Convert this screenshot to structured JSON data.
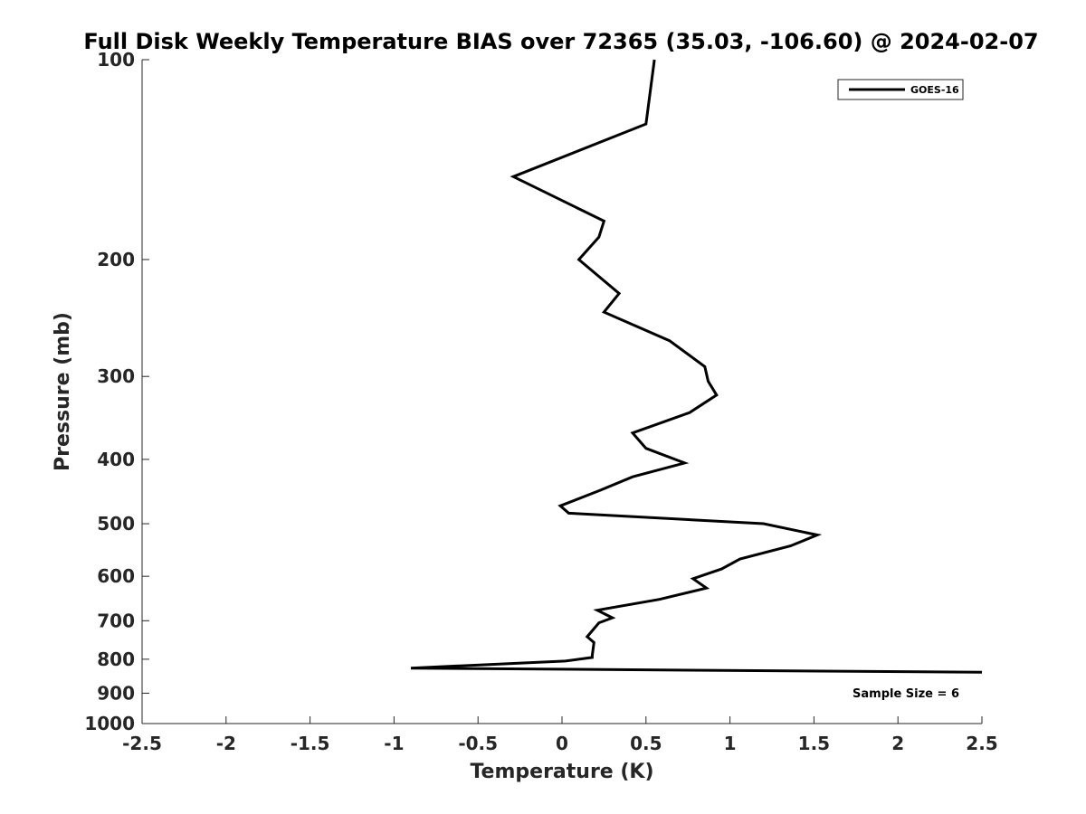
{
  "chart_data": {
    "type": "line",
    "title": "Full Disk Weekly Temperature BIAS over 72365 (35.03, -106.60) @ 2024-02-07",
    "xlabel": "Temperature (K)",
    "ylabel": "Pressure (mb)",
    "xlim": [
      -2.5,
      2.5
    ],
    "ylim": [
      100,
      1000
    ],
    "y_scale": "log",
    "y_reversed": true,
    "xticks": [
      "-2.5",
      "-2",
      "-1.5",
      "-1",
      "-0.5",
      "0",
      "0.5",
      "1",
      "1.5",
      "2",
      "2.5"
    ],
    "yticks": [
      "100",
      "200",
      "300",
      "400",
      "500",
      "600",
      "700",
      "800",
      "900",
      "1000"
    ],
    "grid": false,
    "legend_position": "top-right",
    "series": [
      {
        "name": "GOES-16",
        "color": "#000000",
        "points": [
          {
            "t": 0.55,
            "p": 100
          },
          {
            "t": 0.5,
            "p": 125
          },
          {
            "t": -0.29,
            "p": 150
          },
          {
            "t": 0.25,
            "p": 175
          },
          {
            "t": 0.22,
            "p": 185
          },
          {
            "t": 0.1,
            "p": 200
          },
          {
            "t": 0.34,
            "p": 225
          },
          {
            "t": 0.25,
            "p": 240
          },
          {
            "t": 0.64,
            "p": 265
          },
          {
            "t": 0.85,
            "p": 290
          },
          {
            "t": 0.87,
            "p": 305
          },
          {
            "t": 0.92,
            "p": 320
          },
          {
            "t": 0.76,
            "p": 340
          },
          {
            "t": 0.42,
            "p": 365
          },
          {
            "t": 0.5,
            "p": 385
          },
          {
            "t": 0.73,
            "p": 405
          },
          {
            "t": 0.42,
            "p": 425
          },
          {
            "t": 0.23,
            "p": 445
          },
          {
            "t": -0.01,
            "p": 470
          },
          {
            "t": 0.04,
            "p": 482
          },
          {
            "t": 1.2,
            "p": 500
          },
          {
            "t": 1.52,
            "p": 520
          },
          {
            "t": 1.36,
            "p": 540
          },
          {
            "t": 1.06,
            "p": 565
          },
          {
            "t": 0.95,
            "p": 585
          },
          {
            "t": 0.78,
            "p": 605
          },
          {
            "t": 0.86,
            "p": 625
          },
          {
            "t": 0.58,
            "p": 650
          },
          {
            "t": 0.21,
            "p": 675
          },
          {
            "t": 0.3,
            "p": 693
          },
          {
            "t": 0.22,
            "p": 705
          },
          {
            "t": 0.15,
            "p": 740
          },
          {
            "t": 0.19,
            "p": 755
          },
          {
            "t": 0.18,
            "p": 790
          },
          {
            "t": 0.18,
            "p": 795
          },
          {
            "t": 0.02,
            "p": 805
          },
          {
            "t": -0.9,
            "p": 825
          },
          {
            "t": 2.5,
            "p": 837
          }
        ]
      }
    ],
    "legend": [
      {
        "label": "GOES-16",
        "color": "#000000"
      }
    ],
    "annotations": [
      {
        "text": "Sample Size = 6",
        "position": "bottom-right"
      }
    ]
  }
}
